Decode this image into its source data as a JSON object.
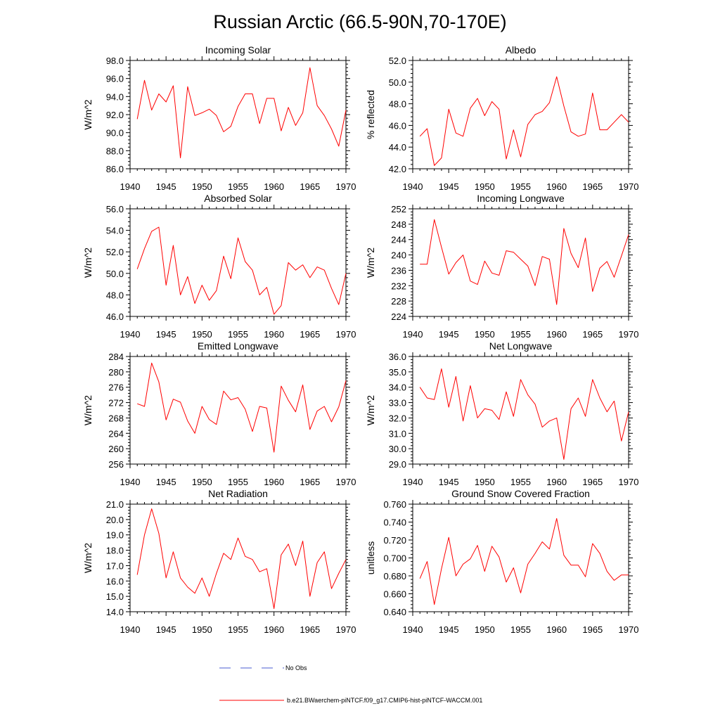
{
  "title": "Russian Arctic (66.5-90N,70-170E)",
  "colors": {
    "model": "#ff0000",
    "obs": "#4a5bd0",
    "axis": "#000000"
  },
  "legend": {
    "obs_label": "No Obs",
    "model_label": "b.e21.BWaerchem-piNTCF.f09_g17.CMIP6-hist-piNTCF-WACCM.001"
  },
  "chart_data": [
    {
      "type": "line",
      "title": "Incoming Solar",
      "ylabel": "W/m^2",
      "xlim": [
        1940,
        1970
      ],
      "x_ticks": [
        1940,
        1945,
        1950,
        1955,
        1960,
        1965,
        1970
      ],
      "ylim": [
        86,
        98
      ],
      "y_ticks": [
        "86.0",
        "88.0",
        "90.0",
        "92.0",
        "94.0",
        "96.0",
        "98.0"
      ],
      "x": [
        1941,
        1942,
        1943,
        1944,
        1945,
        1946,
        1947,
        1948,
        1949,
        1950,
        1951,
        1952,
        1953,
        1954,
        1955,
        1956,
        1957,
        1958,
        1959,
        1960,
        1961,
        1962,
        1963,
        1964,
        1965,
        1966,
        1967,
        1968,
        1969,
        1970
      ],
      "series": [
        {
          "values": [
            91.5,
            95.8,
            92.5,
            94.3,
            93.4,
            95.2,
            87.2,
            95.1,
            91.9,
            92.2,
            92.6,
            91.9,
            90.1,
            90.7,
            92.9,
            94.3,
            94.3,
            91.0,
            93.8,
            93.8,
            90.2,
            92.8,
            90.8,
            92.2,
            97.2,
            93.0,
            91.9,
            90.4,
            88.5,
            92.5
          ]
        }
      ]
    },
    {
      "type": "line",
      "title": "Albedo",
      "ylabel": "% reflected",
      "xlim": [
        1940,
        1970
      ],
      "x_ticks": [
        1940,
        1945,
        1950,
        1955,
        1960,
        1965,
        1970
      ],
      "ylim": [
        42,
        52
      ],
      "y_ticks": [
        "42.0",
        "44.0",
        "46.0",
        "48.0",
        "50.0",
        "52.0"
      ],
      "x": [
        1941,
        1942,
        1943,
        1944,
        1945,
        1946,
        1947,
        1948,
        1949,
        1950,
        1951,
        1952,
        1953,
        1954,
        1955,
        1956,
        1957,
        1958,
        1959,
        1960,
        1961,
        1962,
        1963,
        1964,
        1965,
        1966,
        1967,
        1968,
        1969,
        1970
      ],
      "series": [
        {
          "values": [
            45.0,
            45.7,
            42.3,
            43.0,
            47.5,
            45.3,
            45.0,
            47.6,
            48.5,
            46.9,
            48.2,
            47.5,
            42.9,
            45.6,
            43.1,
            46.1,
            47.0,
            47.3,
            48.1,
            50.5,
            47.8,
            45.4,
            45.0,
            45.2,
            49.0,
            45.6,
            45.6,
            46.3,
            47.0,
            46.3
          ]
        }
      ]
    },
    {
      "type": "line",
      "title": "Absorbed Solar",
      "ylabel": "W/m^2",
      "xlim": [
        1940,
        1970
      ],
      "x_ticks": [
        1940,
        1945,
        1950,
        1955,
        1960,
        1965,
        1970
      ],
      "ylim": [
        46,
        56
      ],
      "y_ticks": [
        "46.0",
        "48.0",
        "50.0",
        "52.0",
        "54.0",
        "56.0"
      ],
      "x": [
        1941,
        1942,
        1943,
        1944,
        1945,
        1946,
        1947,
        1948,
        1949,
        1950,
        1951,
        1952,
        1953,
        1954,
        1955,
        1956,
        1957,
        1958,
        1959,
        1960,
        1961,
        1962,
        1963,
        1964,
        1965,
        1966,
        1967,
        1968,
        1969,
        1970
      ],
      "series": [
        {
          "values": [
            50.4,
            52.3,
            53.9,
            54.3,
            48.9,
            52.6,
            48.0,
            49.7,
            47.2,
            48.9,
            47.5,
            48.4,
            51.6,
            49.5,
            53.3,
            51.1,
            50.3,
            48.0,
            48.7,
            46.2,
            47.0,
            51.0,
            50.3,
            50.8,
            49.6,
            50.6,
            50.3,
            48.6,
            47.1,
            50.0
          ]
        }
      ]
    },
    {
      "type": "line",
      "title": "Incoming Longwave",
      "ylabel": "W/m^2",
      "xlim": [
        1940,
        1970
      ],
      "x_ticks": [
        1940,
        1945,
        1950,
        1955,
        1960,
        1965,
        1970
      ],
      "ylim": [
        224,
        252
      ],
      "y_ticks": [
        "224",
        "228",
        "232",
        "236",
        "240",
        "244",
        "248",
        "252"
      ],
      "x": [
        1941,
        1942,
        1943,
        1944,
        1945,
        1946,
        1947,
        1948,
        1949,
        1950,
        1951,
        1952,
        1953,
        1954,
        1955,
        1956,
        1957,
        1958,
        1959,
        1960,
        1961,
        1962,
        1963,
        1964,
        1965,
        1966,
        1967,
        1968,
        1969,
        1970
      ],
      "series": [
        {
          "values": [
            237.6,
            237.6,
            249.2,
            242.0,
            235.0,
            238.0,
            240.0,
            233.2,
            232.3,
            238.4,
            235.3,
            234.7,
            241.1,
            240.7,
            238.9,
            237.1,
            232.0,
            239.6,
            238.9,
            227.1,
            246.9,
            240.4,
            236.7,
            244.4,
            230.5,
            236.6,
            238.3,
            234.2,
            239.7,
            245.3
          ]
        }
      ]
    },
    {
      "type": "line",
      "title": "Emitted Longwave",
      "ylabel": "W/m^2",
      "xlim": [
        1940,
        1970
      ],
      "x_ticks": [
        1940,
        1945,
        1950,
        1955,
        1960,
        1965,
        1970
      ],
      "ylim": [
        256,
        284
      ],
      "y_ticks": [
        "256",
        "260",
        "264",
        "268",
        "272",
        "276",
        "280",
        "284"
      ],
      "x": [
        1941,
        1942,
        1943,
        1944,
        1945,
        1946,
        1947,
        1948,
        1949,
        1950,
        1951,
        1952,
        1953,
        1954,
        1955,
        1956,
        1957,
        1958,
        1959,
        1960,
        1961,
        1962,
        1963,
        1964,
        1965,
        1966,
        1967,
        1968,
        1969,
        1970
      ],
      "series": [
        {
          "values": [
            271.7,
            271.0,
            282.3,
            277.4,
            267.5,
            272.9,
            272.1,
            267.2,
            264.0,
            271.0,
            267.6,
            266.3,
            275.0,
            272.7,
            273.3,
            270.3,
            264.5,
            271.0,
            270.6,
            259.1,
            276.3,
            272.6,
            269.6,
            276.6,
            265.0,
            269.8,
            271.0,
            267.0,
            270.9,
            277.7
          ]
        }
      ]
    },
    {
      "type": "line",
      "title": "Net Longwave",
      "ylabel": "W/m^2",
      "xlim": [
        1940,
        1970
      ],
      "x_ticks": [
        1940,
        1945,
        1950,
        1955,
        1960,
        1965,
        1970
      ],
      "ylim": [
        29,
        36
      ],
      "y_ticks": [
        "29.0",
        "30.0",
        "31.0",
        "32.0",
        "33.0",
        "34.0",
        "35.0",
        "36.0"
      ],
      "x": [
        1941,
        1942,
        1943,
        1944,
        1945,
        1946,
        1947,
        1948,
        1949,
        1950,
        1951,
        1952,
        1953,
        1954,
        1955,
        1956,
        1957,
        1958,
        1959,
        1960,
        1961,
        1962,
        1963,
        1964,
        1965,
        1966,
        1967,
        1968,
        1969,
        1970
      ],
      "series": [
        {
          "values": [
            34.0,
            33.3,
            33.2,
            35.2,
            32.7,
            34.7,
            31.8,
            34.1,
            32.0,
            32.6,
            32.5,
            31.9,
            33.7,
            32.1,
            34.5,
            33.5,
            32.9,
            31.4,
            31.8,
            32.0,
            29.3,
            32.6,
            33.3,
            32.1,
            34.5,
            33.3,
            32.4,
            33.1,
            30.5,
            32.4
          ]
        }
      ]
    },
    {
      "type": "line",
      "title": "Net Radiation",
      "ylabel": "W/m^2",
      "xlim": [
        1940,
        1970
      ],
      "x_ticks": [
        1940,
        1945,
        1950,
        1955,
        1960,
        1965,
        1970
      ],
      "ylim": [
        14,
        21
      ],
      "y_ticks": [
        "14.0",
        "15.0",
        "16.0",
        "17.0",
        "18.0",
        "19.0",
        "20.0",
        "21.0"
      ],
      "x": [
        1941,
        1942,
        1943,
        1944,
        1945,
        1946,
        1947,
        1948,
        1949,
        1950,
        1951,
        1952,
        1953,
        1954,
        1955,
        1956,
        1957,
        1958,
        1959,
        1960,
        1961,
        1962,
        1963,
        1964,
        1965,
        1966,
        1967,
        1968,
        1969,
        1970
      ],
      "series": [
        {
          "values": [
            16.4,
            19.0,
            20.7,
            19.1,
            16.2,
            17.9,
            16.2,
            15.6,
            15.2,
            16.2,
            15.0,
            16.5,
            17.8,
            17.4,
            18.8,
            17.6,
            17.4,
            16.6,
            16.8,
            14.2,
            17.7,
            18.4,
            17.0,
            18.6,
            15.0,
            17.2,
            17.9,
            15.5,
            16.5,
            17.4
          ]
        }
      ]
    },
    {
      "type": "line",
      "title": "Ground Snow Covered Fraction",
      "ylabel": "unitless",
      "xlim": [
        1940,
        1970
      ],
      "x_ticks": [
        1940,
        1945,
        1950,
        1955,
        1960,
        1965,
        1970
      ],
      "ylim": [
        0.64,
        0.76
      ],
      "y_ticks": [
        "0.640",
        "0.660",
        "0.680",
        "0.700",
        "0.720",
        "0.740",
        "0.760"
      ],
      "x": [
        1941,
        1942,
        1943,
        1944,
        1945,
        1946,
        1947,
        1948,
        1949,
        1950,
        1951,
        1952,
        1953,
        1954,
        1955,
        1956,
        1957,
        1958,
        1959,
        1960,
        1961,
        1962,
        1963,
        1964,
        1965,
        1966,
        1967,
        1968,
        1969,
        1970
      ],
      "series": [
        {
          "values": [
            0.677,
            0.696,
            0.648,
            0.688,
            0.723,
            0.68,
            0.693,
            0.699,
            0.714,
            0.685,
            0.713,
            0.701,
            0.673,
            0.689,
            0.661,
            0.693,
            0.705,
            0.718,
            0.71,
            0.744,
            0.703,
            0.692,
            0.692,
            0.679,
            0.716,
            0.705,
            0.685,
            0.675,
            0.681,
            0.681
          ]
        }
      ]
    }
  ]
}
